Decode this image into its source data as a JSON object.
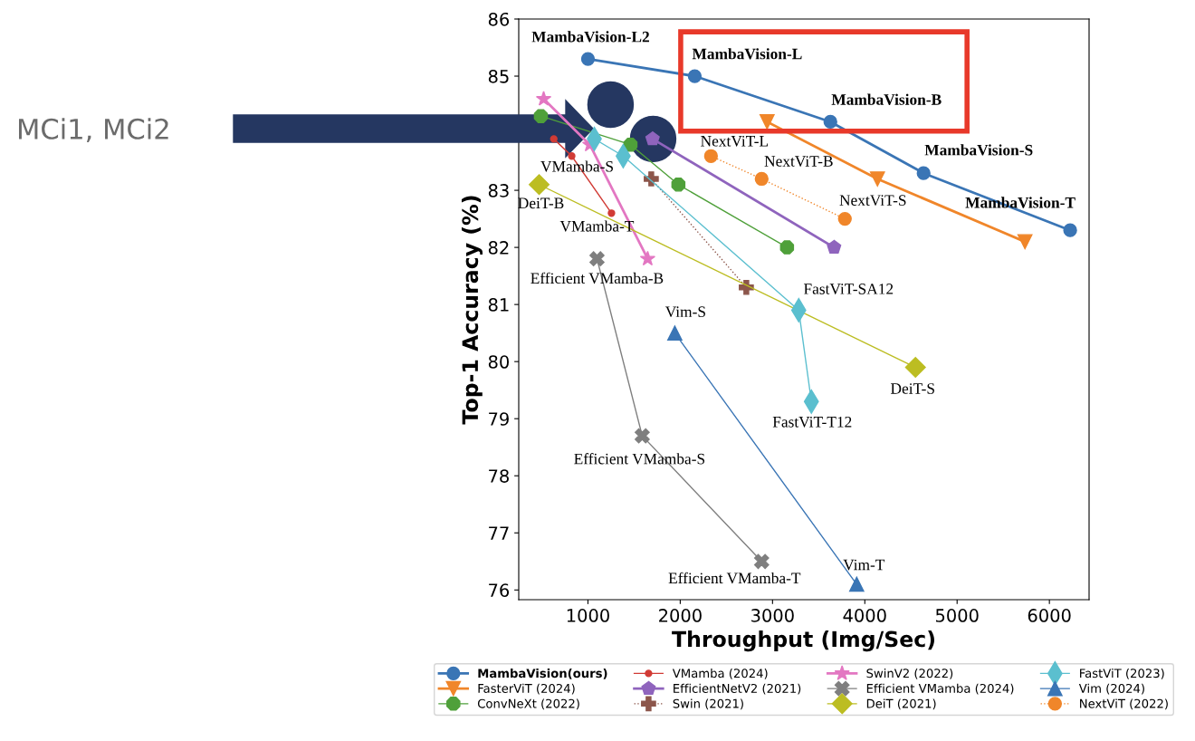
{
  "chart_data": {
    "type": "line",
    "xlabel": "Throughput (Img/Sec)",
    "ylabel": "Top-1 Accuracy (%)",
    "xlim": [
      250,
      6430
    ],
    "ylim": [
      75.83,
      86
    ],
    "xticks": [
      1000,
      2000,
      3000,
      4000,
      5000,
      6000
    ],
    "yticks": [
      76,
      77,
      78,
      79,
      80,
      81,
      82,
      83,
      {
        "value": 84,
        "label": null
      },
      85,
      86
    ],
    "grid": false,
    "legend": "bottom",
    "series": [
      {
        "name": "MambaVision(ours)",
        "color": "#3a75b5",
        "marker": "circle",
        "line_style": "solid",
        "x": [
          1000,
          2157,
          3627,
          4637,
          6225
        ],
        "values": [
          85.3,
          85.0,
          84.2,
          83.3,
          82.3
        ]
      },
      {
        "name": "FasterViT (2024)",
        "color": "#f0862a",
        "marker": "triangle_down",
        "line_style": "solid",
        "x": [
          2941,
          4137,
          5735
        ],
        "values": [
          84.2,
          83.2,
          82.1
        ]
      },
      {
        "name": "ConvNeXt (2022)",
        "color": "#4fa03a",
        "marker": "circle",
        "line_style": "solid",
        "x": [
          490,
          1461,
          1980,
          3157
        ],
        "values": [
          84.3,
          83.8,
          83.1,
          82.0
        ]
      },
      {
        "name": "VMamba (2024)",
        "color": "#d13b35",
        "marker": "circle",
        "line_style": "solid",
        "x": [
          630,
          824,
          1255
        ],
        "values": [
          83.9,
          83.6,
          82.6
        ]
      },
      {
        "name": "EfficientNetV2 (2021)",
        "color": "#8f64bd",
        "marker": "circle",
        "line_style": "solid",
        "x": [
          1700,
          3667
        ],
        "values": [
          83.9,
          82.0
        ]
      },
      {
        "name": "Swin (2021)",
        "color": "#8c564b",
        "marker": "plus",
        "line_style": "dotted",
        "x": [
          1686,
          2716
        ],
        "values": [
          83.2,
          81.3
        ]
      },
      {
        "name": "SwinV2 (2022)",
        "color": "#e377c2",
        "marker": "star",
        "line_style": "solid",
        "x": [
          520,
          1020,
          1647
        ],
        "values": [
          84.6,
          83.8,
          81.8
        ]
      },
      {
        "name": "Efficient VMamba (2024)",
        "color": "#7f7f7f",
        "marker": "cross",
        "line_style": "solid",
        "x": [
          1098,
          1588,
          2882
        ],
        "values": [
          81.8,
          78.7,
          76.5
        ]
      },
      {
        "name": "DeiT (2021)",
        "color": "#bcbd22",
        "marker": "diamond",
        "line_style": "solid",
        "x": [
          471,
          4549
        ],
        "values": [
          83.1,
          79.9
        ]
      },
      {
        "name": "FastViT (2023)",
        "color": "#5bbfcf",
        "marker": "diamond",
        "line_style": "solid",
        "x": [
          1069,
          1382,
          3284,
          3421
        ],
        "values": [
          83.9,
          83.6,
          80.9,
          79.3
        ]
      },
      {
        "name": "Vim (2024)",
        "color": "#3a75b5",
        "marker": "triangle",
        "line_style": "solid",
        "x": [
          1941,
          3912
        ],
        "values": [
          80.5,
          76.1
        ]
      },
      {
        "name": "NextViT (2022)",
        "color": "#f0862a",
        "marker": "circle",
        "line_style": "dotted",
        "x": [
          2333,
          2882,
          3784
        ],
        "values": [
          83.6,
          83.2,
          82.5
        ]
      },
      {
        "type": "scatter",
        "color": "#253761",
        "marker": "circle",
        "x": [
          1245,
          1706
        ],
        "values": [
          84.5,
          83.9
        ]
      }
    ],
    "annotations": [
      {
        "text": "MambaVision-L2",
        "x": 1000,
        "y": 85.3
      },
      {
        "text": "MambaVision-L",
        "x": 2157,
        "y": 85.0
      },
      {
        "text": "MambaVision-B",
        "x": 3627,
        "y": 84.2
      },
      {
        "text": "MambaVision-S",
        "x": 4637,
        "y": 83.3
      },
      {
        "text": "MambaVision-T",
        "x": 6225,
        "y": 82.3
      },
      {
        "text": "NextViT-L",
        "x": 2333,
        "y": 83.6
      },
      {
        "text": "NextViT-B",
        "x": 2882,
        "y": 83.2
      },
      {
        "text": "NextViT-S",
        "x": 3784,
        "y": 82.5
      },
      {
        "text": "VMamba-S",
        "x": 824,
        "y": 83.6
      },
      {
        "text": "VMamba-T",
        "x": 1255,
        "y": 82.6
      },
      {
        "text": "DeiT-B",
        "x": 471,
        "y": 83.1
      },
      {
        "text": "Efficient VMamba-B",
        "x": 1098,
        "y": 81.8
      },
      {
        "text": "FastViT-SA12",
        "x": 3284,
        "y": 80.9
      },
      {
        "text": "Vim-S",
        "x": 1941,
        "y": 80.5
      },
      {
        "text": "DeiT-S",
        "x": 4549,
        "y": 79.9
      },
      {
        "text": "FastViT-T12",
        "x": 3421,
        "y": 79.3
      },
      {
        "text": "Efficient VMamba-S",
        "x": 1588,
        "y": 78.7
      },
      {
        "text": "Efficient VMamba-T",
        "x": 2882,
        "y": 76.5
      },
      {
        "text": "Vim-T",
        "x": 3912,
        "y": 76.1
      },
      "MCi1, MCi2"
    ]
  }
}
